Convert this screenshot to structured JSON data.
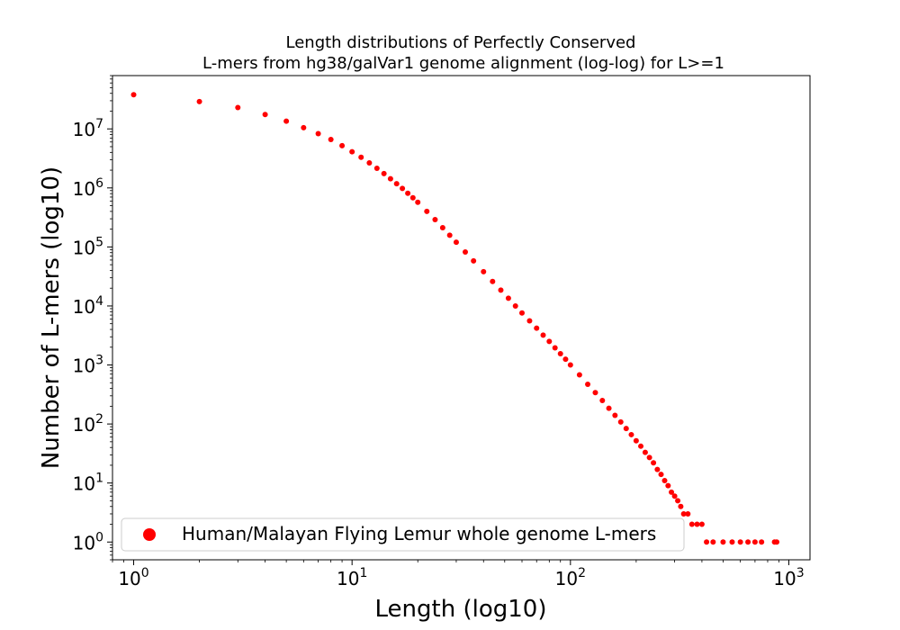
{
  "chart_data": {
    "type": "scatter",
    "title_line1": "Length distributions of Perfectly Conserved",
    "title_line2": "L-mers from hg38/galVar1 genome alignment (log-log) for L>=1",
    "xlabel": "Length (log10)",
    "ylabel": "Number of L-mers (log10)",
    "xscale": "log",
    "yscale": "log",
    "xlim": [
      0.8,
      1250
    ],
    "ylim": [
      0.5,
      80000000
    ],
    "grid": false,
    "legend_position": "lower-left",
    "x_ticks": [
      {
        "base": "10",
        "exp": "0",
        "value": 1
      },
      {
        "base": "10",
        "exp": "1",
        "value": 10
      },
      {
        "base": "10",
        "exp": "2",
        "value": 100
      },
      {
        "base": "10",
        "exp": "3",
        "value": 1000
      }
    ],
    "y_ticks": [
      {
        "base": "10",
        "exp": "0",
        "value": 1
      },
      {
        "base": "10",
        "exp": "1",
        "value": 10
      },
      {
        "base": "10",
        "exp": "2",
        "value": 100
      },
      {
        "base": "10",
        "exp": "3",
        "value": 1000
      },
      {
        "base": "10",
        "exp": "4",
        "value": 10000
      },
      {
        "base": "10",
        "exp": "5",
        "value": 100000
      },
      {
        "base": "10",
        "exp": "6",
        "value": 1000000
      },
      {
        "base": "10",
        "exp": "7",
        "value": 10000000
      }
    ],
    "series": [
      {
        "name": "Human/Malayan Flying Lemur whole genome L-mers",
        "color": "#ff0000",
        "points": [
          [
            1,
            38000000
          ],
          [
            2,
            29000000
          ],
          [
            3,
            23000000
          ],
          [
            4,
            17500000
          ],
          [
            5,
            13500000
          ],
          [
            6,
            10500000
          ],
          [
            7,
            8300000
          ],
          [
            8,
            6600000
          ],
          [
            9,
            5200000
          ],
          [
            10,
            4100000
          ],
          [
            11,
            3300000
          ],
          [
            12,
            2650000
          ],
          [
            13,
            2150000
          ],
          [
            14,
            1750000
          ],
          [
            15,
            1430000
          ],
          [
            16,
            1180000
          ],
          [
            17,
            980000
          ],
          [
            18,
            810000
          ],
          [
            19,
            680000
          ],
          [
            20,
            570000
          ],
          [
            22,
            400000
          ],
          [
            24,
            290000
          ],
          [
            26,
            212000
          ],
          [
            28,
            158000
          ],
          [
            30,
            120000
          ],
          [
            33,
            82000
          ],
          [
            36,
            58000
          ],
          [
            40,
            38000
          ],
          [
            44,
            26000
          ],
          [
            48,
            18500
          ],
          [
            52,
            13500
          ],
          [
            56,
            10000
          ],
          [
            60,
            7600
          ],
          [
            65,
            5600
          ],
          [
            70,
            4200
          ],
          [
            75,
            3200
          ],
          [
            80,
            2500
          ],
          [
            85,
            1950
          ],
          [
            90,
            1550
          ],
          [
            95,
            1250
          ],
          [
            100,
            1000
          ],
          [
            110,
            680
          ],
          [
            120,
            470
          ],
          [
            130,
            340
          ],
          [
            140,
            250
          ],
          [
            150,
            185
          ],
          [
            160,
            140
          ],
          [
            170,
            108
          ],
          [
            180,
            84
          ],
          [
            190,
            66
          ],
          [
            200,
            52
          ],
          [
            210,
            42
          ],
          [
            220,
            33
          ],
          [
            230,
            27
          ],
          [
            240,
            22
          ],
          [
            250,
            17
          ],
          [
            260,
            14
          ],
          [
            270,
            11
          ],
          [
            280,
            9
          ],
          [
            290,
            7
          ],
          [
            300,
            6
          ],
          [
            310,
            5
          ],
          [
            320,
            4
          ],
          [
            330,
            3
          ],
          [
            345,
            3
          ],
          [
            360,
            2
          ],
          [
            380,
            2
          ],
          [
            400,
            2
          ],
          [
            420,
            1
          ],
          [
            450,
            1
          ],
          [
            500,
            1
          ],
          [
            550,
            1
          ],
          [
            600,
            1
          ],
          [
            650,
            1
          ],
          [
            700,
            1
          ],
          [
            750,
            1
          ],
          [
            860,
            1
          ],
          [
            880,
            1
          ]
        ]
      }
    ]
  }
}
